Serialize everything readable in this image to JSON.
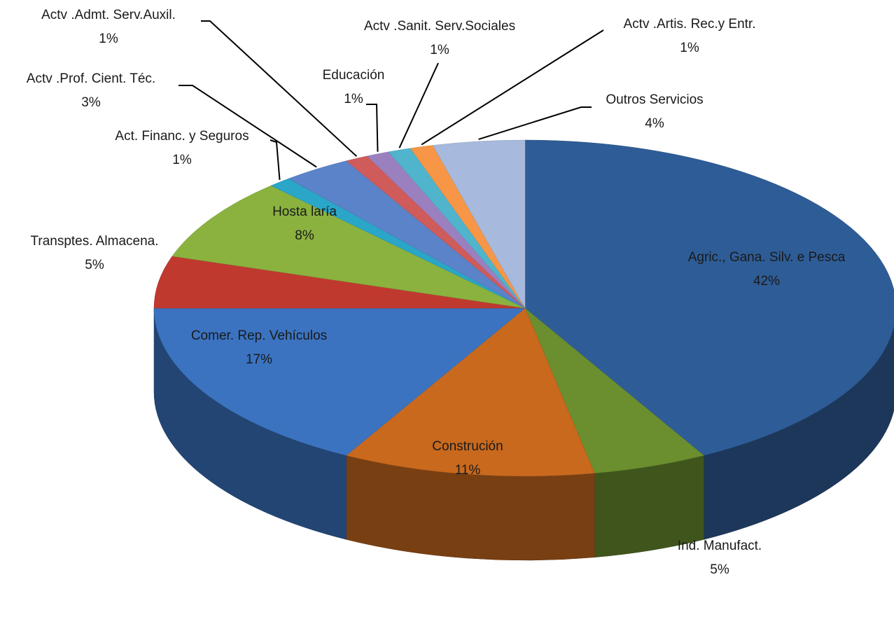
{
  "chart_data": {
    "type": "pie3d",
    "categories": [
      "Agric., Gana. Silv. e Pesca",
      "Ind. Manufact.",
      "Construción",
      "Comer. Rep.  Vehículos",
      "Transptes. Almacena.",
      "Hosta laría",
      "Act. Financ. y Seguros",
      "Actv .Prof. Cient. Téc.",
      "Actv .Admt. Serv.Auxil.",
      "Educación",
      "Actv .Sanit. Serv.Sociales",
      "Actv .Artis. Rec.y Entr.",
      "Outros Servicios"
    ],
    "values": [
      42,
      5,
      11,
      17,
      5,
      8,
      1,
      3,
      1,
      1,
      1,
      1,
      4
    ],
    "value_labels": [
      "42%",
      "5%",
      "11%",
      "17%",
      "5%",
      "8%",
      "1%",
      "3%",
      "1%",
      "1%",
      "1%",
      "1%",
      "4%"
    ],
    "colors": [
      "#2e5c96",
      "#6b8e2f",
      "#c8691e",
      "#3b73c0",
      "#c0392f",
      "#8bb23f",
      "#2aa6c8",
      "#5b83c9",
      "#cf5b5b",
      "#9b80bf",
      "#4fb4cc",
      "#f79646",
      "#a7b9dc"
    ]
  }
}
